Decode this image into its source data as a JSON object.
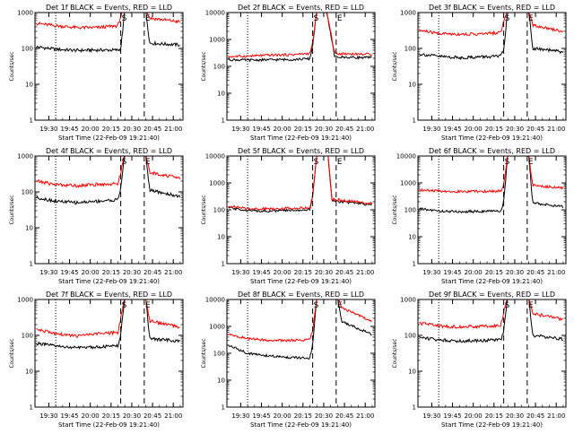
{
  "chart_data": [
    {
      "type": "line",
      "title": "Det 1f BLACK = Events, RED = LLD",
      "xlabel": "Start Time (22-Feb-09 19:21:40)",
      "ylabel": "Counts/sec",
      "yscale": "log",
      "ylim": [
        1,
        1000
      ],
      "y_tick_labels": [
        "1",
        "10",
        "100",
        "1000"
      ],
      "x_tick_labels": [
        "19:30",
        "19:45",
        "20:00",
        "20:15",
        "20:30",
        "20:45",
        "21:00"
      ],
      "xlim_minutes_after_1921": [
        -1,
        106
      ],
      "dotted_line_x": "19:35",
      "dashed_lines_x": [
        "20:22",
        "20:39"
      ],
      "marker_labels": [
        "S",
        "E"
      ],
      "series": [
        {
          "color": "#000000",
          "x": [
            "19:21",
            "19:35",
            "19:50",
            "20:05",
            "20:20",
            "20:22",
            "20:25",
            "20:29",
            "20:40",
            "20:43",
            "21:05"
          ],
          "values": [
            110,
            95,
            88,
            90,
            90,
            95,
            1200,
            1200,
            1200,
            140,
            125
          ]
        },
        {
          "color": "#ff0000",
          "x": [
            "19:21",
            "19:35",
            "19:50",
            "20:05",
            "20:20",
            "20:22",
            "20:25",
            "20:29",
            "20:40",
            "20:43",
            "21:05"
          ],
          "values": [
            500,
            430,
            380,
            380,
            430,
            800,
            1200,
            1200,
            1200,
            700,
            550
          ]
        }
      ]
    },
    {
      "type": "line",
      "title": "Det 2f BLACK = Events, RED = LLD",
      "xlabel": "Start Time (22-Feb-09 19:21:40)",
      "ylabel": "Counts/sec",
      "yscale": "log",
      "ylim": [
        1,
        10000
      ],
      "y_tick_labels": [
        "1",
        "10",
        "100",
        "1000",
        "10000"
      ],
      "x_tick_labels": [
        "19:30",
        "19:45",
        "20:00",
        "20:15",
        "20:30",
        "20:45",
        "21:00"
      ],
      "xlim_minutes_after_1921": [
        -1,
        106
      ],
      "dotted_line_x": "19:35",
      "dashed_lines_x": [
        "20:22",
        "20:39"
      ],
      "marker_labels": [
        "S",
        "E"
      ],
      "series": [
        {
          "color": "#000000",
          "x": [
            "19:21",
            "19:35",
            "19:50",
            "20:05",
            "20:20",
            "20:22",
            "20:25",
            "20:29",
            "20:32",
            "20:38",
            "21:05"
          ],
          "values": [
            180,
            170,
            175,
            180,
            190,
            600,
            12000,
            12000,
            12000,
            220,
            210
          ]
        },
        {
          "color": "#ff0000",
          "x": [
            "19:21",
            "19:35",
            "19:50",
            "20:05",
            "20:20",
            "20:22",
            "20:25",
            "20:29",
            "20:32",
            "20:38",
            "21:05"
          ],
          "values": [
            230,
            240,
            260,
            270,
            300,
            700,
            12000,
            12000,
            12000,
            300,
            280
          ]
        }
      ]
    },
    {
      "type": "line",
      "title": "Det 3f BLACK = Events, RED = LLD",
      "xlabel": "Start Time (22-Feb-09 19:21:40)",
      "ylabel": "Counts/sec",
      "yscale": "log",
      "ylim": [
        1,
        1000
      ],
      "y_tick_labels": [
        "1",
        "10",
        "100",
        "1000"
      ],
      "x_tick_labels": [
        "19:30",
        "19:45",
        "20:00",
        "20:15",
        "20:30",
        "20:45",
        "21:00"
      ],
      "xlim_minutes_after_1921": [
        -1,
        106
      ],
      "dotted_line_x": "19:35",
      "dashed_lines_x": [
        "20:22",
        "20:39"
      ],
      "marker_labels": [
        "S",
        "E"
      ],
      "series": [
        {
          "color": "#000000",
          "x": [
            "19:21",
            "19:35",
            "19:50",
            "20:05",
            "20:20",
            "20:22",
            "20:25",
            "20:29",
            "20:40",
            "20:43",
            "21:05"
          ],
          "values": [
            70,
            60,
            55,
            58,
            60,
            90,
            1200,
            1200,
            1200,
            100,
            80
          ]
        },
        {
          "color": "#ff0000",
          "x": [
            "19:21",
            "19:35",
            "19:50",
            "20:05",
            "20:20",
            "20:22",
            "20:25",
            "20:29",
            "20:40",
            "20:43",
            "21:05"
          ],
          "values": [
            320,
            260,
            250,
            250,
            280,
            600,
            1200,
            1200,
            1200,
            450,
            300
          ]
        }
      ]
    },
    {
      "type": "line",
      "title": "Det 4f BLACK = Events, RED = LLD",
      "xlabel": "Start Time (22-Feb-09 19:21:40)",
      "ylabel": "Counts/sec",
      "yscale": "log",
      "ylim": [
        1,
        1000
      ],
      "y_tick_labels": [
        "1",
        "10",
        "100",
        "1000"
      ],
      "x_tick_labels": [
        "19:30",
        "19:45",
        "20:00",
        "20:15",
        "20:30",
        "20:45",
        "21:00"
      ],
      "xlim_minutes_after_1921": [
        -1,
        106
      ],
      "dotted_line_x": "19:35",
      "dashed_lines_x": [
        "20:22",
        "20:39"
      ],
      "marker_labels": [
        "S",
        "E"
      ],
      "series": [
        {
          "color": "#000000",
          "x": [
            "19:21",
            "19:35",
            "19:50",
            "20:05",
            "20:20",
            "20:22",
            "20:25",
            "20:29",
            "20:40",
            "20:43",
            "21:05"
          ],
          "values": [
            70,
            55,
            50,
            55,
            60,
            130,
            1200,
            1200,
            1200,
            110,
            75
          ]
        },
        {
          "color": "#ff0000",
          "x": [
            "19:21",
            "19:35",
            "19:50",
            "20:05",
            "20:20",
            "20:22",
            "20:25",
            "20:29",
            "20:40",
            "20:43",
            "21:05"
          ],
          "values": [
            200,
            160,
            150,
            160,
            170,
            350,
            1200,
            1200,
            1200,
            350,
            240
          ]
        }
      ]
    },
    {
      "type": "line",
      "title": "Det 5f BLACK = Events, RED = LLD",
      "xlabel": "Start Time (22-Feb-09 19:21:40)",
      "ylabel": "Counts/sec",
      "yscale": "log",
      "ylim": [
        1,
        10000
      ],
      "y_tick_labels": [
        "1",
        "10",
        "100",
        "1000",
        "10000"
      ],
      "x_tick_labels": [
        "19:30",
        "19:45",
        "20:00",
        "20:15",
        "20:30",
        "20:45",
        "21:00"
      ],
      "xlim_minutes_after_1921": [
        -1,
        106
      ],
      "dotted_line_x": "19:35",
      "dashed_lines_x": [
        "20:22",
        "20:39"
      ],
      "marker_labels": [
        "S",
        "E"
      ],
      "series": [
        {
          "color": "#000000",
          "x": [
            "19:21",
            "19:35",
            "19:50",
            "20:05",
            "20:20",
            "20:22",
            "20:25",
            "20:29",
            "20:33",
            "20:36",
            "21:05"
          ],
          "values": [
            120,
            95,
            90,
            95,
            100,
            300,
            12000,
            12000,
            12000,
            220,
            150
          ]
        },
        {
          "color": "#ff0000",
          "x": [
            "19:21",
            "19:35",
            "19:50",
            "20:05",
            "20:20",
            "20:22",
            "20:25",
            "20:29",
            "20:33",
            "20:36",
            "21:05"
          ],
          "values": [
            140,
            110,
            110,
            115,
            120,
            350,
            12000,
            12000,
            12000,
            250,
            170
          ]
        }
      ]
    },
    {
      "type": "line",
      "title": "Det 6f BLACK = Events, RED = LLD",
      "xlabel": "Start Time (22-Feb-09 19:21:40)",
      "ylabel": "Counts/sec",
      "yscale": "log",
      "ylim": [
        1,
        10000
      ],
      "y_tick_labels": [
        "1",
        "10",
        "100",
        "1000",
        "10000"
      ],
      "x_tick_labels": [
        "19:30",
        "19:45",
        "20:00",
        "20:15",
        "20:30",
        "20:45",
        "21:00"
      ],
      "xlim_minutes_after_1921": [
        -1,
        106
      ],
      "dotted_line_x": "19:35",
      "dashed_lines_x": [
        "20:22",
        "20:39"
      ],
      "marker_labels": [
        "S",
        "E"
      ],
      "series": [
        {
          "color": "#000000",
          "x": [
            "19:21",
            "19:35",
            "19:50",
            "20:05",
            "20:20",
            "20:22",
            "20:25",
            "20:29",
            "20:40",
            "20:43",
            "21:05"
          ],
          "values": [
            110,
            90,
            85,
            88,
            90,
            200,
            12000,
            12000,
            12000,
            180,
            130
          ]
        },
        {
          "color": "#ff0000",
          "x": [
            "19:21",
            "19:35",
            "19:50",
            "20:05",
            "20:20",
            "20:22",
            "20:25",
            "20:29",
            "20:40",
            "20:43",
            "21:05"
          ],
          "values": [
            550,
            500,
            480,
            480,
            500,
            900,
            12000,
            12000,
            12000,
            800,
            650
          ]
        }
      ]
    },
    {
      "type": "line",
      "title": "Det 7f BLACK = Events, RED = LLD",
      "xlabel": "Start Time (22-Feb-09 19:21:40)",
      "ylabel": "Counts/sec",
      "yscale": "log",
      "ylim": [
        1,
        1000
      ],
      "y_tick_labels": [
        "1",
        "10",
        "100",
        "1000"
      ],
      "x_tick_labels": [
        "19:30",
        "19:45",
        "20:00",
        "20:15",
        "20:30",
        "20:45",
        "21:00"
      ],
      "xlim_minutes_after_1921": [
        -1,
        106
      ],
      "dotted_line_x": "19:35",
      "dashed_lines_x": [
        "20:22",
        "20:39"
      ],
      "marker_labels": [
        "S",
        "E"
      ],
      "series": [
        {
          "color": "#000000",
          "x": [
            "19:21",
            "19:35",
            "19:50",
            "20:05",
            "20:20",
            "20:22",
            "20:25",
            "20:29",
            "20:40",
            "20:43",
            "21:05"
          ],
          "values": [
            60,
            50,
            45,
            48,
            50,
            100,
            1200,
            1200,
            1200,
            80,
            70
          ]
        },
        {
          "color": "#ff0000",
          "x": [
            "19:21",
            "19:35",
            "19:50",
            "20:05",
            "20:20",
            "20:22",
            "20:25",
            "20:29",
            "20:40",
            "20:43",
            "21:05"
          ],
          "values": [
            150,
            110,
            95,
            110,
            120,
            300,
            1200,
            1200,
            1200,
            250,
            170
          ]
        }
      ]
    },
    {
      "type": "line",
      "title": "Det 8f BLACK = Events, RED = LLD",
      "xlabel": "Start Time (22-Feb-09 19:21:40)",
      "ylabel": "Counts/sec",
      "yscale": "log",
      "ylim": [
        1,
        10000
      ],
      "y_tick_labels": [
        "1",
        "10",
        "100",
        "1000",
        "10000"
      ],
      "x_tick_labels": [
        "19:30",
        "19:45",
        "20:00",
        "20:15",
        "20:30",
        "20:45",
        "21:00"
      ],
      "xlim_minutes_after_1921": [
        -1,
        106
      ],
      "dotted_line_x": "19:35",
      "dashed_lines_x": [
        "20:22",
        "20:39"
      ],
      "marker_labels": [
        "S",
        "E"
      ],
      "series": [
        {
          "color": "#000000",
          "x": [
            "19:21",
            "19:35",
            "19:50",
            "20:05",
            "20:20",
            "20:22",
            "20:25",
            "20:29",
            "20:40",
            "20:43",
            "21:05"
          ],
          "values": [
            200,
            100,
            80,
            70,
            65,
            200,
            12000,
            12000,
            12000,
            1500,
            500
          ]
        },
        {
          "color": "#ff0000",
          "x": [
            "19:21",
            "19:35",
            "19:50",
            "20:05",
            "20:20",
            "20:22",
            "20:25",
            "20:29",
            "20:40",
            "20:43",
            "21:05"
          ],
          "values": [
            500,
            350,
            300,
            300,
            320,
            700,
            12000,
            12000,
            12000,
            5000,
            1500
          ]
        }
      ]
    },
    {
      "type": "line",
      "title": "Det 9f BLACK = Events, RED = LLD",
      "xlabel": "Start Time (22-Feb-09 19:21:40)",
      "ylabel": "Counts/sec",
      "yscale": "log",
      "ylim": [
        1,
        1000
      ],
      "y_tick_labels": [
        "1",
        "10",
        "100",
        "1000"
      ],
      "x_tick_labels": [
        "19:30",
        "19:45",
        "20:00",
        "20:15",
        "20:30",
        "20:45",
        "21:00"
      ],
      "xlim_minutes_after_1921": [
        -1,
        106
      ],
      "dotted_line_x": "19:35",
      "dashed_lines_x": [
        "20:22",
        "20:39"
      ],
      "marker_labels": [
        "S",
        "E"
      ],
      "series": [
        {
          "color": "#000000",
          "x": [
            "19:21",
            "19:35",
            "19:50",
            "20:05",
            "20:20",
            "20:22",
            "20:25",
            "20:29",
            "20:40",
            "20:43",
            "21:05"
          ],
          "values": [
            90,
            75,
            70,
            72,
            75,
            130,
            1200,
            1200,
            1200,
            100,
            80
          ]
        },
        {
          "color": "#ff0000",
          "x": [
            "19:21",
            "19:35",
            "19:50",
            "20:05",
            "20:20",
            "20:22",
            "20:25",
            "20:29",
            "20:40",
            "20:43",
            "21:05"
          ],
          "values": [
            220,
            180,
            170,
            180,
            190,
            450,
            1200,
            1200,
            1200,
            400,
            280
          ]
        }
      ]
    }
  ]
}
